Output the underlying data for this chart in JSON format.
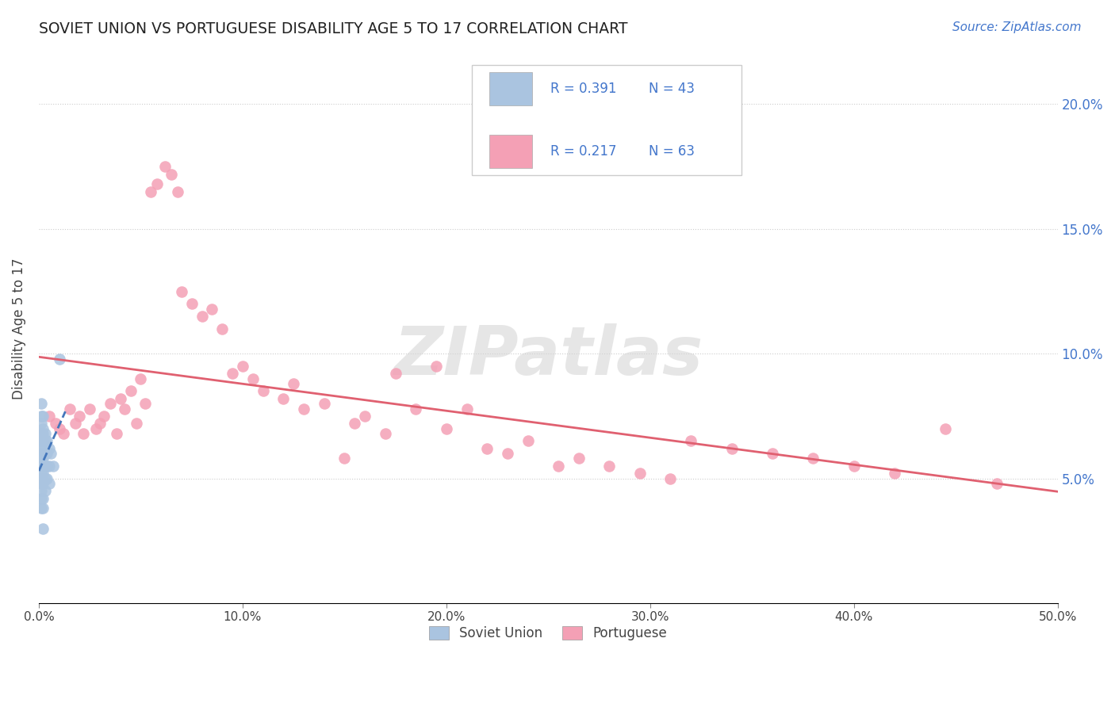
{
  "title": "SOVIET UNION VS PORTUGUESE DISABILITY AGE 5 TO 17 CORRELATION CHART",
  "source": "Source: ZipAtlas.com",
  "ylabel": "Disability Age 5 to 17",
  "xlim": [
    0.0,
    0.5
  ],
  "ylim": [
    0.0,
    0.22
  ],
  "grid_color": "#cccccc",
  "background_color": "#ffffff",
  "soviet_color": "#aac4e0",
  "portuguese_color": "#f4a0b5",
  "soviet_line_color": "#4477bb",
  "portuguese_line_color": "#e06070",
  "legend_label_soviet": "Soviet Union",
  "legend_label_portuguese": "Portuguese",
  "watermark": "ZIPatlas",
  "soviet_x": [
    0.001,
    0.001,
    0.001,
    0.001,
    0.001,
    0.001,
    0.001,
    0.001,
    0.001,
    0.001,
    0.001,
    0.001,
    0.001,
    0.001,
    0.001,
    0.002,
    0.002,
    0.002,
    0.002,
    0.002,
    0.002,
    0.002,
    0.002,
    0.002,
    0.002,
    0.002,
    0.002,
    0.003,
    0.003,
    0.003,
    0.003,
    0.003,
    0.003,
    0.004,
    0.004,
    0.004,
    0.004,
    0.005,
    0.005,
    0.005,
    0.006,
    0.007,
    0.01
  ],
  "soviet_y": [
    0.08,
    0.075,
    0.072,
    0.068,
    0.065,
    0.062,
    0.06,
    0.058,
    0.055,
    0.052,
    0.05,
    0.048,
    0.045,
    0.042,
    0.038,
    0.075,
    0.07,
    0.068,
    0.065,
    0.062,
    0.058,
    0.055,
    0.052,
    0.048,
    0.042,
    0.038,
    0.03,
    0.068,
    0.065,
    0.06,
    0.055,
    0.05,
    0.045,
    0.065,
    0.06,
    0.055,
    0.05,
    0.062,
    0.055,
    0.048,
    0.06,
    0.055,
    0.098
  ],
  "portuguese_x": [
    0.005,
    0.008,
    0.01,
    0.012,
    0.015,
    0.018,
    0.02,
    0.022,
    0.025,
    0.028,
    0.03,
    0.032,
    0.035,
    0.038,
    0.04,
    0.042,
    0.045,
    0.048,
    0.05,
    0.052,
    0.055,
    0.058,
    0.062,
    0.065,
    0.068,
    0.07,
    0.075,
    0.08,
    0.085,
    0.09,
    0.095,
    0.1,
    0.105,
    0.11,
    0.12,
    0.125,
    0.13,
    0.14,
    0.15,
    0.155,
    0.16,
    0.17,
    0.175,
    0.185,
    0.195,
    0.2,
    0.21,
    0.22,
    0.23,
    0.24,
    0.255,
    0.265,
    0.28,
    0.295,
    0.31,
    0.32,
    0.34,
    0.36,
    0.38,
    0.4,
    0.42,
    0.445,
    0.47
  ],
  "portuguese_y": [
    0.075,
    0.072,
    0.07,
    0.068,
    0.078,
    0.072,
    0.075,
    0.068,
    0.078,
    0.07,
    0.072,
    0.075,
    0.08,
    0.068,
    0.082,
    0.078,
    0.085,
    0.072,
    0.09,
    0.08,
    0.165,
    0.168,
    0.175,
    0.172,
    0.165,
    0.125,
    0.12,
    0.115,
    0.118,
    0.11,
    0.092,
    0.095,
    0.09,
    0.085,
    0.082,
    0.088,
    0.078,
    0.08,
    0.058,
    0.072,
    0.075,
    0.068,
    0.092,
    0.078,
    0.095,
    0.07,
    0.078,
    0.062,
    0.06,
    0.065,
    0.055,
    0.058,
    0.055,
    0.052,
    0.05,
    0.065,
    0.062,
    0.06,
    0.058,
    0.055,
    0.052,
    0.07,
    0.048
  ]
}
